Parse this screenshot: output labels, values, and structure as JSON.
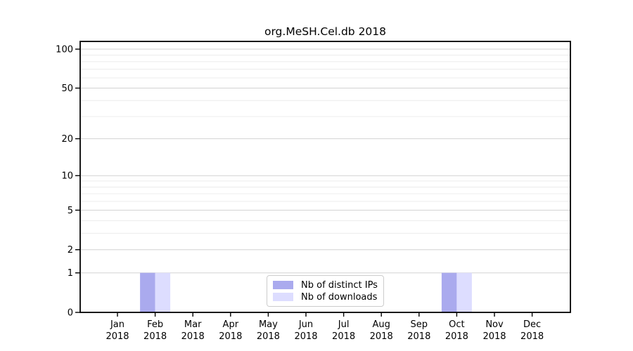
{
  "chart_data": {
    "type": "bar",
    "title": "org.MeSH.Cel.db 2018",
    "categories": [
      "Jan",
      "Feb",
      "Mar",
      "Apr",
      "May",
      "Jun",
      "Jul",
      "Aug",
      "Sep",
      "Oct",
      "Nov",
      "Dec"
    ],
    "year": "2018",
    "series": [
      {
        "name": "Nb of distinct IPs",
        "color": "#aaaaee",
        "values": [
          0,
          1,
          0,
          0,
          0,
          0,
          0,
          0,
          0,
          1,
          0,
          0
        ]
      },
      {
        "name": "Nb of downloads",
        "color": "#ddddff",
        "values": [
          0,
          1,
          0,
          0,
          0,
          0,
          0,
          0,
          0,
          1,
          0,
          0
        ]
      }
    ],
    "yscale": "log1p",
    "ylim": [
      0,
      114
    ],
    "yticks": [
      0,
      1,
      2,
      5,
      10,
      20,
      50,
      100
    ],
    "minor_gridline_values": [
      3,
      4,
      6,
      7,
      8,
      9,
      30,
      40,
      60,
      70,
      80,
      90
    ],
    "grid": "horizontal",
    "legend_position": "lower center, inside plot",
    "colors": {
      "axis": "#000000",
      "major_grid": "#d2d2d2",
      "minor_grid": "#ececec",
      "text": "#000000",
      "legend_border": "#cccccc",
      "background": "#ffffff"
    }
  }
}
